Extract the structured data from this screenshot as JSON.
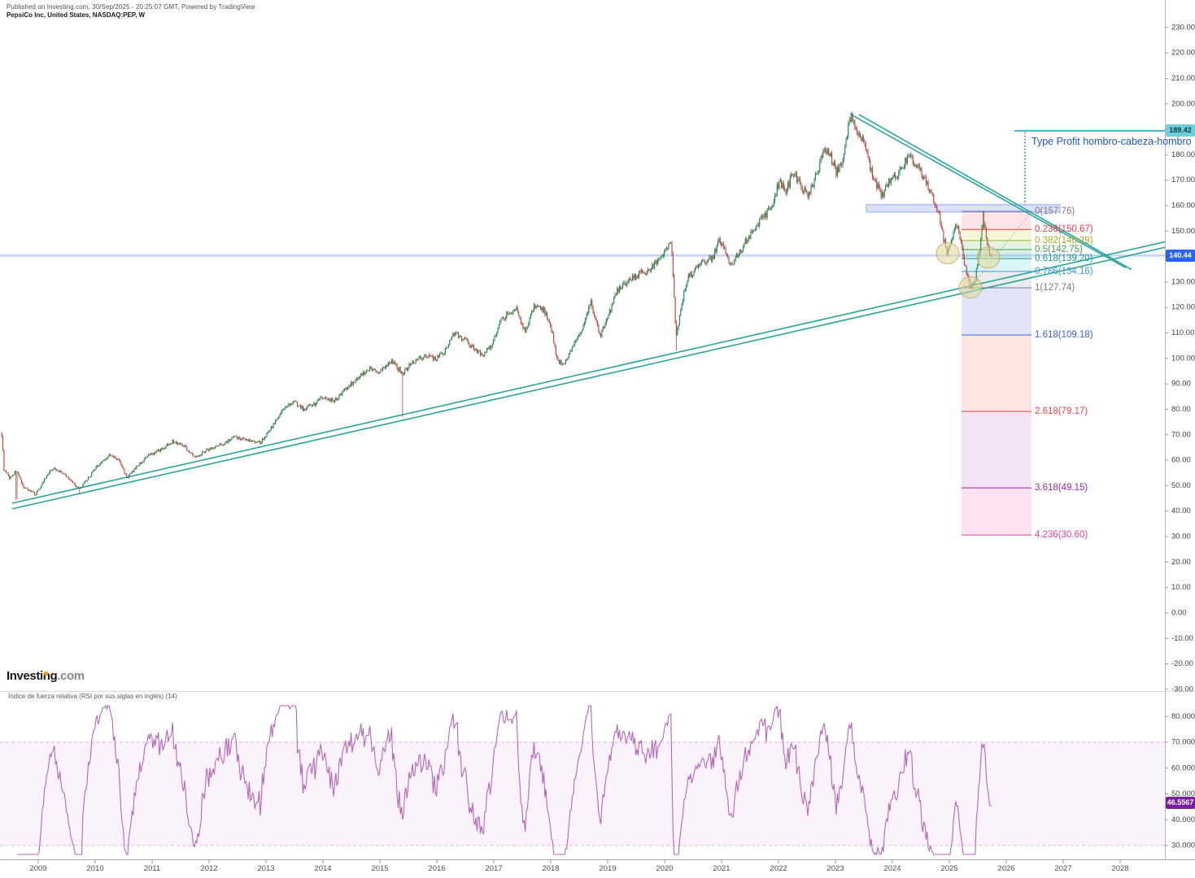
{
  "header": {
    "published_line": "Published on Investing.com, 30/Sep/2025 - 20:25:07 GMT, Powered by TradingView",
    "symbol_line": "PepsiCo Inc, United States, NASDAQ:PEP, W"
  },
  "branding": {
    "logo_main": "Investing",
    "logo_suffix": ".com"
  },
  "annotation": {
    "text": "Type Profit hombro-cabeza-hombro",
    "color": "#2156c8"
  },
  "price_labels": {
    "target": "189.42",
    "current": "140.44"
  },
  "rsi": {
    "title": "Índice de fuerza relativa (RSI por sus siglas en inglés) (14)",
    "value_label": "46.5567"
  },
  "chart_data": {
    "type": "candlestick",
    "symbol": "NASDAQ:PEP",
    "timeframe": "W",
    "x_axis": {
      "years": [
        2009,
        2010,
        2011,
        2012,
        2013,
        2014,
        2015,
        2016,
        2017,
        2018,
        2019,
        2020,
        2021,
        2022,
        2023,
        2024,
        2025,
        2026,
        2027,
        2028
      ]
    },
    "price_axis": {
      "min": -30,
      "max": 230,
      "step": 10
    },
    "rsi_axis": {
      "min": 30,
      "max": 80,
      "step": 10
    },
    "current_price": 140.44,
    "target_price": 189.42,
    "price_anchors": [
      [
        2008.36,
        70
      ],
      [
        2008.4,
        56
      ],
      [
        2008.5,
        53
      ],
      [
        2008.62,
        56
      ],
      [
        2008.72,
        50
      ],
      [
        2008.85,
        48
      ],
      [
        2008.95,
        46.5
      ],
      [
        2009.1,
        52
      ],
      [
        2009.25,
        57
      ],
      [
        2009.42,
        55
      ],
      [
        2009.58,
        52
      ],
      [
        2009.72,
        48.5
      ],
      [
        2009.88,
        53
      ],
      [
        2010.05,
        58
      ],
      [
        2010.25,
        62
      ],
      [
        2010.42,
        60
      ],
      [
        2010.56,
        53
      ],
      [
        2010.75,
        58
      ],
      [
        2010.95,
        62
      ],
      [
        2011.15,
        64
      ],
      [
        2011.35,
        67.5
      ],
      [
        2011.55,
        66
      ],
      [
        2011.75,
        61
      ],
      [
        2011.95,
        64
      ],
      [
        2012.2,
        66
      ],
      [
        2012.45,
        69
      ],
      [
        2012.7,
        68
      ],
      [
        2012.9,
        67
      ],
      [
        2013.1,
        73
      ],
      [
        2013.3,
        80
      ],
      [
        2013.5,
        83
      ],
      [
        2013.65,
        80
      ],
      [
        2013.85,
        82
      ],
      [
        2014.0,
        85
      ],
      [
        2014.2,
        83
      ],
      [
        2014.4,
        88
      ],
      [
        2014.6,
        92
      ],
      [
        2014.8,
        96
      ],
      [
        2015.0,
        95
      ],
      [
        2015.2,
        99
      ],
      [
        2015.4,
        94
      ],
      [
        2015.55,
        98
      ],
      [
        2015.78,
        101
      ],
      [
        2016.0,
        100
      ],
      [
        2016.15,
        103
      ],
      [
        2016.3,
        110
      ],
      [
        2016.5,
        107
      ],
      [
        2016.65,
        104
      ],
      [
        2016.8,
        101
      ],
      [
        2016.95,
        105
      ],
      [
        2017.1,
        114
      ],
      [
        2017.25,
        118
      ],
      [
        2017.4,
        119
      ],
      [
        2017.55,
        110
      ],
      [
        2017.72,
        121
      ],
      [
        2017.88,
        119
      ],
      [
        2018.0,
        113
      ],
      [
        2018.12,
        99
      ],
      [
        2018.25,
        98
      ],
      [
        2018.4,
        105
      ],
      [
        2018.55,
        112
      ],
      [
        2018.7,
        122
      ],
      [
        2018.87,
        109
      ],
      [
        2019.0,
        116
      ],
      [
        2019.15,
        126
      ],
      [
        2019.35,
        130
      ],
      [
        2019.55,
        133
      ],
      [
        2019.75,
        135
      ],
      [
        2019.9,
        139
      ],
      [
        2020.02,
        143
      ],
      [
        2020.12,
        146
      ],
      [
        2020.2,
        108
      ],
      [
        2020.3,
        122
      ],
      [
        2020.42,
        132
      ],
      [
        2020.56,
        135
      ],
      [
        2020.7,
        138
      ],
      [
        2020.85,
        140
      ],
      [
        2020.96,
        146
      ],
      [
        2021.06,
        143
      ],
      [
        2021.16,
        136
      ],
      [
        2021.3,
        141
      ],
      [
        2021.46,
        147
      ],
      [
        2021.6,
        152
      ],
      [
        2021.76,
        156
      ],
      [
        2021.9,
        161
      ],
      [
        2022.02,
        170
      ],
      [
        2022.12,
        165
      ],
      [
        2022.26,
        173
      ],
      [
        2022.4,
        168
      ],
      [
        2022.52,
        163
      ],
      [
        2022.66,
        172
      ],
      [
        2022.8,
        182
      ],
      [
        2022.92,
        179
      ],
      [
        2023.02,
        173
      ],
      [
        2023.12,
        178
      ],
      [
        2023.2,
        188
      ],
      [
        2023.28,
        195
      ],
      [
        2023.38,
        189
      ],
      [
        2023.5,
        186
      ],
      [
        2023.6,
        176
      ],
      [
        2023.72,
        168
      ],
      [
        2023.82,
        164
      ],
      [
        2023.92,
        169
      ],
      [
        2024.02,
        171
      ],
      [
        2024.12,
        173
      ],
      [
        2024.22,
        177
      ],
      [
        2024.32,
        179
      ],
      [
        2024.42,
        176
      ],
      [
        2024.52,
        172
      ],
      [
        2024.62,
        168
      ],
      [
        2024.72,
        163
      ],
      [
        2024.82,
        157
      ],
      [
        2024.9,
        147
      ],
      [
        2024.97,
        141
      ],
      [
        2025.07,
        150
      ],
      [
        2025.14,
        152
      ],
      [
        2025.22,
        144
      ],
      [
        2025.3,
        133
      ],
      [
        2025.37,
        128
      ],
      [
        2025.45,
        131
      ],
      [
        2025.52,
        140
      ],
      [
        2025.58,
        153
      ],
      [
        2025.62,
        152
      ],
      [
        2025.66,
        146
      ],
      [
        2025.72,
        141
      ],
      [
        2025.745,
        140.44
      ]
    ],
    "wick_events": [
      {
        "t": 2008.62,
        "low": 44.5
      },
      {
        "t": 2009.72,
        "low": 46.5
      },
      {
        "t": 2015.4,
        "low": 77.0
      },
      {
        "t": 2020.2,
        "low": 103.2
      },
      {
        "t": 2025.37,
        "low": 127.74
      },
      {
        "t": 2025.6,
        "high": 157.76
      }
    ],
    "trendlines": [
      {
        "name": "rising-support-upper",
        "x1": 2008.543,
        "p1": 43.1,
        "x2": 2028.786,
        "p2": 145.8,
        "color": "#26a69a",
        "width": 1.6
      },
      {
        "name": "rising-support-lower",
        "x1": 2008.543,
        "p1": 40.9,
        "x2": 2028.786,
        "p2": 143.6,
        "color": "#26a69a",
        "width": 1.6
      },
      {
        "name": "descending-resistance-upper",
        "x1": 2023.257,
        "p1": 196.0,
        "x2": 2028.1,
        "p2": 135.6,
        "color": "#26a69a",
        "width": 1.6
      },
      {
        "name": "descending-resistance-lower",
        "x1": 2023.414,
        "p1": 195.8,
        "x2": 2028.2,
        "p2": 134.9,
        "color": "#26a69a",
        "width": 1.6
      },
      {
        "name": "target-line",
        "x1": 2026.143,
        "p1": 189.42,
        "x2": 2028.786,
        "p2": 189.42,
        "color": "#3ab7c8",
        "width": 2
      }
    ],
    "fib": {
      "x1": 2025.214,
      "x2": 2026.443,
      "levels": [
        {
          "level": "0",
          "value": 157.76,
          "label": "0(157.76)",
          "color": "#787b86"
        },
        {
          "level": "0.236",
          "value": 150.67,
          "label": "0.236(150.67)",
          "color": "#f23645"
        },
        {
          "level": "0.382",
          "value": 146.29,
          "label": "0.382(146.29)",
          "color": "#a3af27"
        },
        {
          "level": "0.5",
          "value": 142.75,
          "label": "0.5(142.75)",
          "color": "#43a047"
        },
        {
          "level": "0.618",
          "value": 139.2,
          "label": "0.618(139.20)",
          "color": "#1aa089"
        },
        {
          "level": "0.786",
          "value": 134.16,
          "label": "0.786(134.16)",
          "color": "#3d95dd"
        },
        {
          "level": "1",
          "value": 127.74,
          "label": "1(127.74)",
          "color": "#787b86"
        },
        {
          "level": "1.618",
          "value": 109.18,
          "label": "1.618(109.18)",
          "color": "#3d5af1"
        },
        {
          "level": "2.618",
          "value": 79.17,
          "label": "2.618(79.17)",
          "color": "#ef3e4a"
        },
        {
          "level": "3.618",
          "value": 49.15,
          "label": "3.618(49.15)",
          "color": "#9c27b0"
        },
        {
          "level": "4.236",
          "value": 30.6,
          "label": "4.236(30.60)",
          "color": "#e040ab"
        }
      ],
      "band_fills": [
        "rgba(242,54,69,0.13)",
        "rgba(205,220,57,0.20)",
        "rgba(103,183,88,0.18)",
        "rgba(8,153,129,0.15)",
        "rgba(0,188,212,0.15)",
        "rgba(120,123,134,0.15)",
        "rgba(88,98,222,0.18)",
        "rgba(242,90,60,0.16)",
        "rgba(156,39,176,0.13)",
        "rgba(233,30,140,0.13)"
      ],
      "dotted_ray": {
        "x1": 2025.371,
        "p1": 127.74,
        "x2": 2026.443,
        "p2": 157.76
      }
    },
    "neckline_box": {
      "x1": 2023.543,
      "x2": 2026.943,
      "p1": 157.5,
      "p2": 160.4,
      "fill": "rgba(82,110,242,0.20)",
      "stroke": "rgba(82,110,242,0.55)"
    },
    "profit_ray": {
      "x": 2026.329,
      "p1": 160.5,
      "p2": 188.8,
      "color": "#2962ff"
    },
    "markers": [
      {
        "x": 2024.971,
        "p": 141.3,
        "r": 14
      },
      {
        "x": 2025.371,
        "p": 127.9,
        "r": 14
      },
      {
        "x": 2025.686,
        "p": 139.6,
        "r": 14
      }
    ],
    "marker_style": {
      "fill": "rgba(226,217,150,0.55)",
      "stroke": "rgba(178,168,90,0.8)"
    },
    "rsi_pane": {
      "period": 14,
      "upper_band": 70,
      "lower_band": 30,
      "last_value": 46.5567,
      "line_color": "#b665ba",
      "band_fill": "rgba(186,104,200,0.08)",
      "band_line": "rgba(199,105,204,0.55)"
    },
    "candle_colors": {
      "up": "#1d8a4c",
      "up_stroke": "#11663a",
      "down": "#c0463d",
      "down_stroke": "#9c352e"
    }
  }
}
